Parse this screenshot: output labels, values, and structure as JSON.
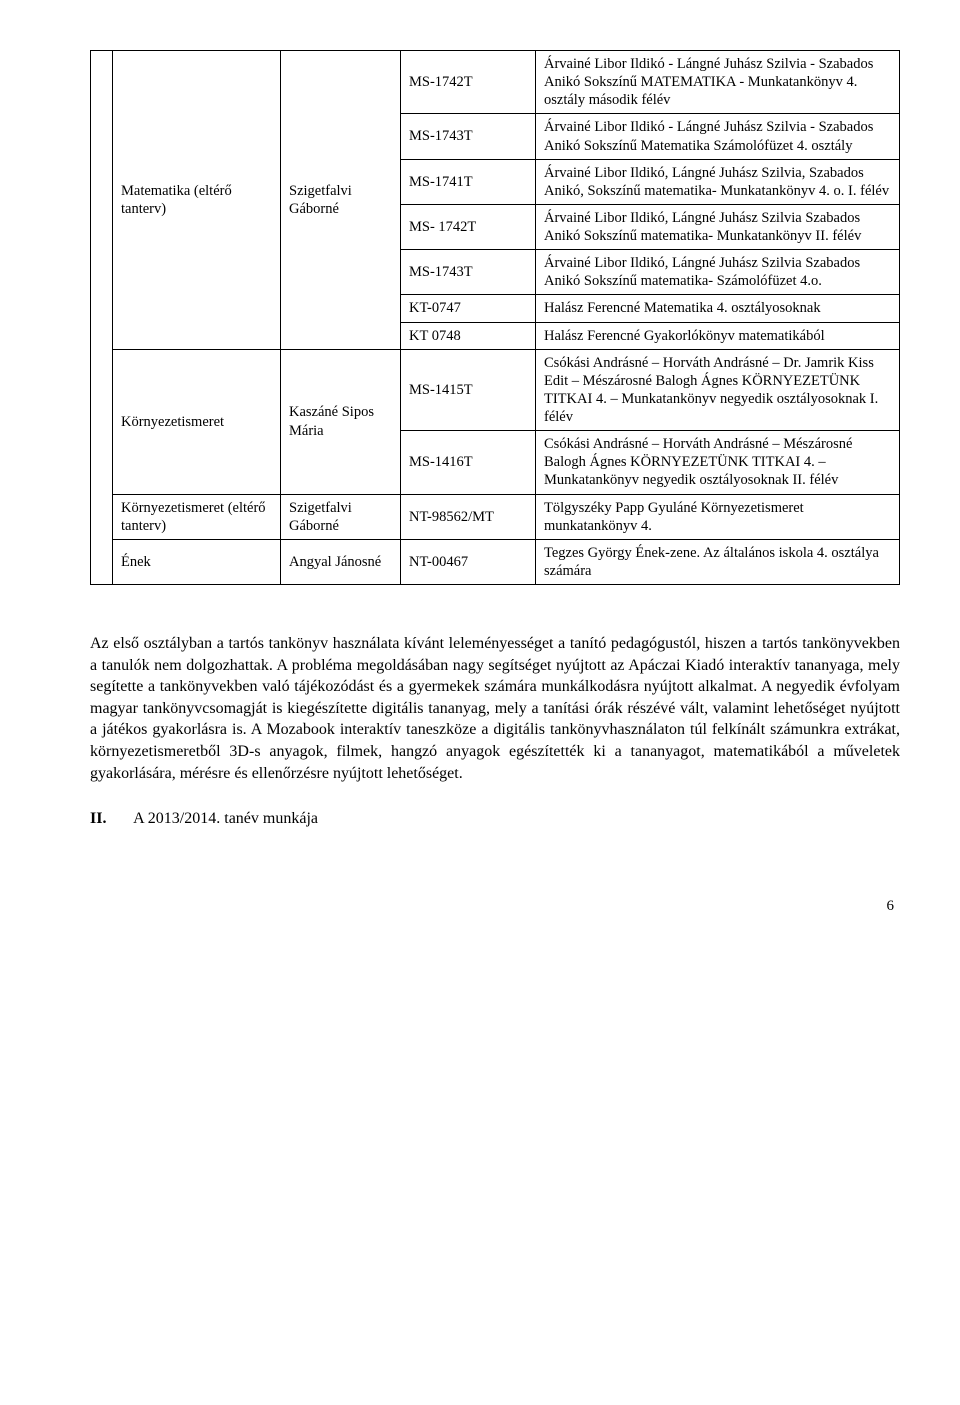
{
  "table": {
    "rows": [
      {
        "subject": "Matematika (eltérő tanterv)",
        "subject_rowspan": 7,
        "teacher": "Szigetfalvi Gáborné",
        "teacher_rowspan": 7,
        "code": "MS-1742T",
        "desc": "Árvainé Libor Ildikó - Lángné Juhász Szilvia - Szabados Anikó\nSokszínű MATEMATIKA - Munkatankönyv 4. osztály második félév"
      },
      {
        "code": "MS-1743T",
        "desc": "Árvainé Libor Ildikó - Lángné Juhász Szilvia - Szabados Anikó Sokszínű Matematika Számolófüzet 4. osztály"
      },
      {
        "code": "MS-1741T",
        "desc": "Árvainé Libor Ildikó, Lángné Juhász Szilvia, Szabados Anikó, Sokszínű matematika- Munkatankönyv 4. o. I. félév"
      },
      {
        "code": "MS- 1742T",
        "desc": "Árvainé Libor Ildikó, Lángné Juhász Szilvia Szabados Anikó Sokszínű matematika- Munkatankönyv II. félév"
      },
      {
        "code": "MS-1743T",
        "desc": "Árvainé Libor Ildikó, Lángné Juhász Szilvia Szabados Anikó Sokszínű matematika- Számolófüzet 4.o."
      },
      {
        "code": "KT-0747",
        "desc": "Halász Ferencné Matematika 4. osztályosoknak"
      },
      {
        "code": "KT 0748",
        "desc": "Halász Ferencné Gyakorlókönyv matematikából"
      },
      {
        "subject": "Környezetismeret",
        "subject_rowspan": 2,
        "teacher": "Kaszáné Sipos Mária",
        "teacher_rowspan": 2,
        "code": "MS-1415T",
        "desc": "Csókási Andrásné – Horváth Andrásné – Dr. Jamrik Kiss Edit – Mészárosné Balogh Ágnes\nKÖRNYEZETÜNK TITKAI 4. – Munkatankönyv negyedik osztályosoknak I. félév"
      },
      {
        "code": "MS-1416T",
        "desc": "Csókási Andrásné – Horváth Andrásné – Mészárosné Balogh Ágnes\nKÖRNYEZETÜNK TITKAI 4. – Munkatankönyv negyedik osztályosoknak II. félév"
      },
      {
        "subject": "Környezetismeret (eltérő tanterv)",
        "subject_rowspan": 1,
        "teacher": "Szigetfalvi Gáborné",
        "teacher_rowspan": 1,
        "code": "NT-98562/MT",
        "desc": "Tölgyszéky Papp Gyuláné Környezetismeret munkatankönyv 4."
      },
      {
        "subject": "Ének",
        "subject_rowspan": 1,
        "teacher": "Angyal Jánosné",
        "teacher_rowspan": 1,
        "code": "NT-00467",
        "desc": "Tegzes György Ének-zene. Az általános iskola 4. osztálya számára"
      }
    ]
  },
  "paragraph": "Az első osztályban a tartós tankönyv használata kívánt leleményességet a tanító pedagógustól, hiszen a tartós tankönyvekben a tanulók nem dolgozhattak. A probléma megoldásában nagy segítséget nyújtott az Apáczai Kiadó interaktív tananyaga, mely segítette a tankönyvekben való tájékozódást és a gyermekek számára munkálkodásra nyújtott alkalmat. A negyedik évfolyam magyar tankönyvcsomagját is kiegészítette digitális tananyag, mely a tanítási órák részévé vált, valamint lehetőséget nyújtott a játékos gyakorlásra is. A Mozabook interaktív taneszköze a digitális tankönyvhasználaton túl felkínált számunkra extrákat, környezetismeretből 3D-s anyagok, filmek, hangzó anyagok egészítették ki a tananyagot, matematikából a műveletek gyakorlására, mérésre és ellenőrzésre nyújtott lehetőséget.",
  "section": {
    "roman": "II.",
    "title": "A 2013/2014. tanév munkája"
  },
  "page_number": "6"
}
